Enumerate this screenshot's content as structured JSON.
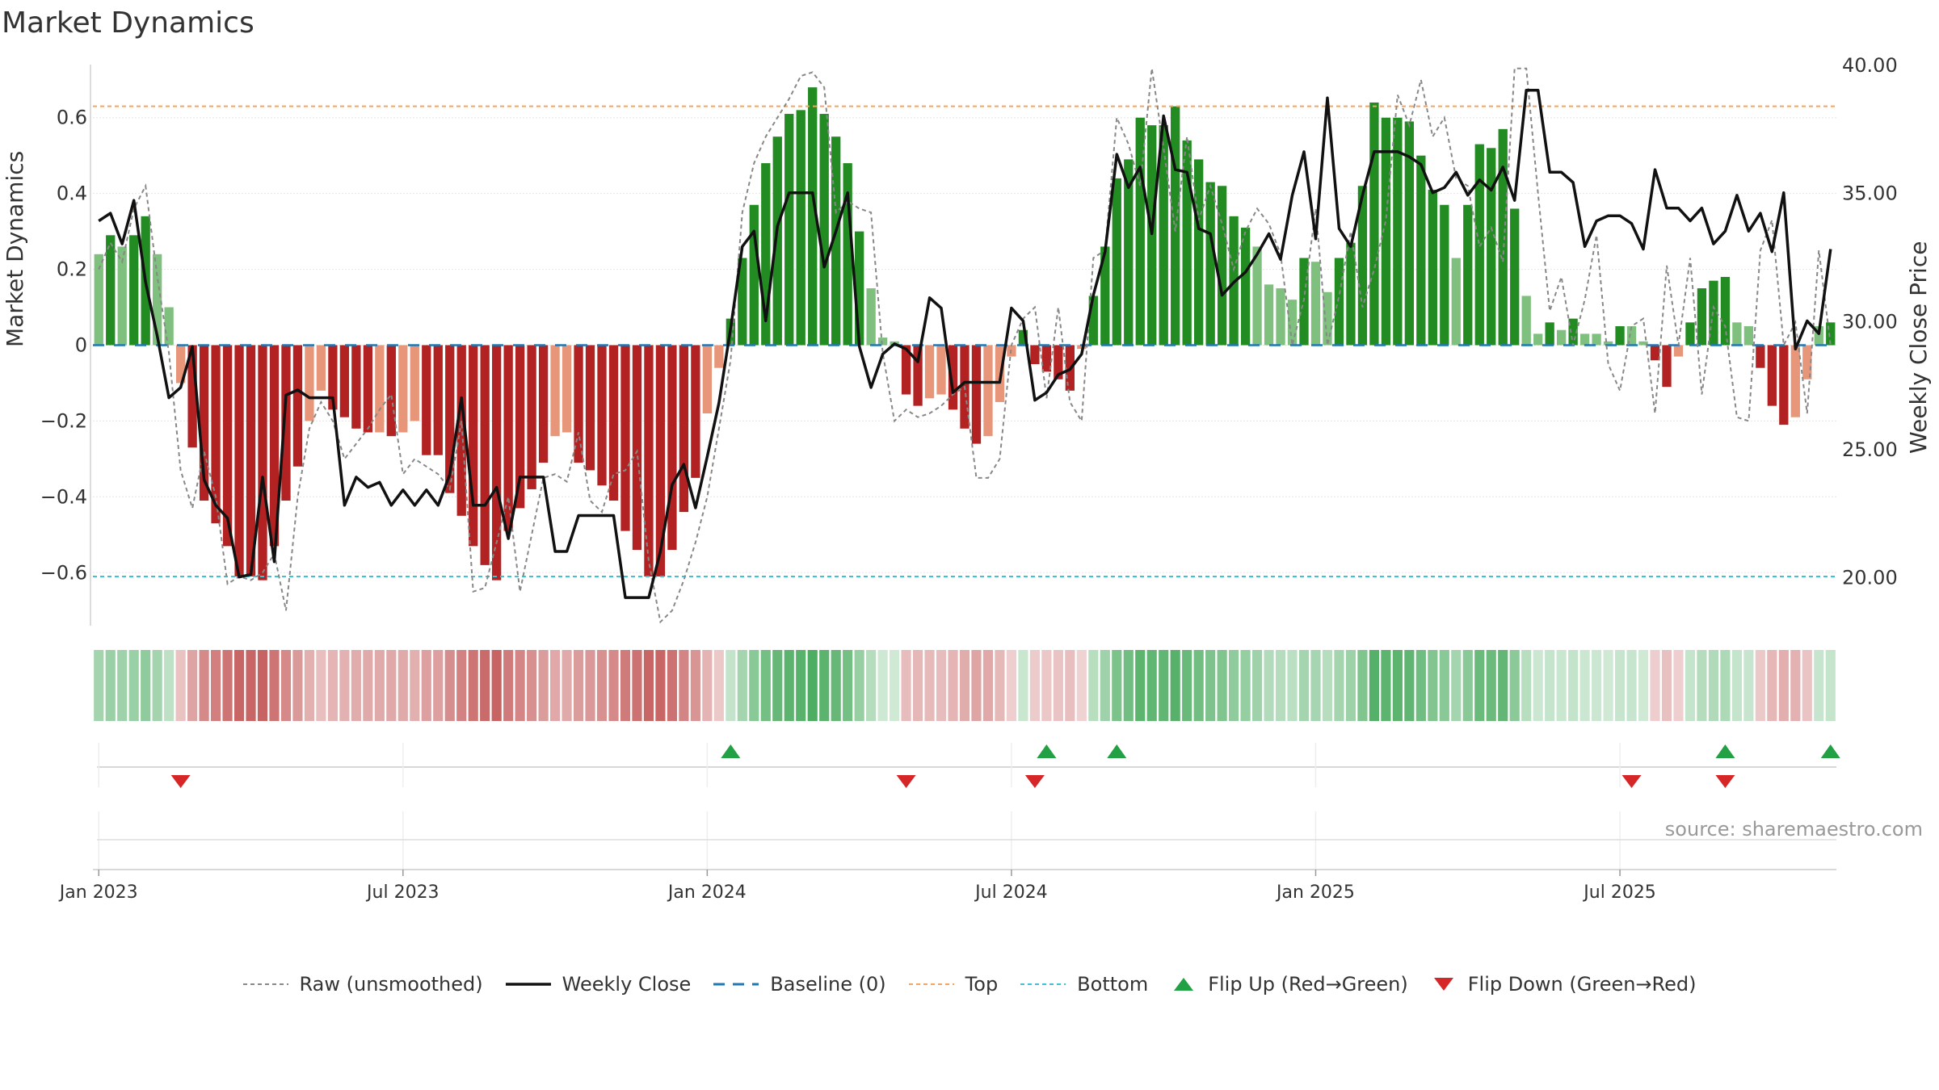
{
  "title": "Market Dynamics",
  "watermark": "source: sharemaestro.com",
  "colors": {
    "strong_green": "#228b22",
    "light_green": "#7fc07f",
    "strong_red": "#b22222",
    "light_red": "#e8967a",
    "close_line": "#111111",
    "raw_line": "#888888",
    "baseline": "#1f77b4",
    "top": "#f4a460",
    "bottom": "#40c0d0",
    "flip_up": "#22a044",
    "flip_down": "#d62728"
  },
  "legend": [
    {
      "label": "Raw (unsmoothed)",
      "kind": "raw"
    },
    {
      "label": "Weekly Close",
      "kind": "close"
    },
    {
      "label": "Baseline (0)",
      "kind": "baseline"
    },
    {
      "label": "Top",
      "kind": "top"
    },
    {
      "label": "Bottom",
      "kind": "bottom"
    },
    {
      "label": "Flip Up (Red→Green)",
      "kind": "flip_up"
    },
    {
      "label": "Flip Down (Green→Red)",
      "kind": "flip_down"
    }
  ],
  "chart_data": {
    "type": "bar",
    "title": "Market Dynamics",
    "ylabel": "Market Dynamics",
    "y2label": "Weekly Close Price",
    "ylim": [
      -0.74,
      0.74
    ],
    "y2lim": [
      18.1,
      40.0
    ],
    "yticks": [
      0.6,
      0.4,
      0.2,
      0,
      -0.2,
      -0.4,
      -0.6
    ],
    "ytick_labels": [
      "0.6",
      "0.4",
      "0.2",
      "0",
      "−0.2",
      "−0.4",
      "−0.6"
    ],
    "y2ticks": [
      40,
      35,
      30,
      25,
      20
    ],
    "y2tick_labels": [
      "40.00",
      "35.00",
      "30.00",
      "25.00",
      "20.00"
    ],
    "xtick_labels": [
      "Jan 2023",
      "Jul 2023",
      "Jan 2024",
      "Jul 2024",
      "Jan 2025",
      "Jul 2025"
    ],
    "top_level": 0.63,
    "bottom_level": -0.61,
    "baseline": 0,
    "grid": true,
    "legend_position": "bottom",
    "weeks": 142,
    "series": [
      {
        "name": "Weekly Close",
        "axis": "right",
        "values": [
          33.9,
          34.2,
          33.0,
          34.7,
          31.5,
          29.4,
          27.0,
          27.4,
          29.0,
          23.8,
          22.8,
          22.3,
          20.0,
          20.1,
          23.9,
          20.6,
          27.1,
          27.3,
          27.0,
          27.0,
          27.0,
          22.8,
          23.9,
          23.5,
          23.7,
          22.8,
          23.4,
          22.8,
          23.4,
          22.8,
          24.0,
          27.0,
          22.8,
          22.8,
          23.5,
          21.5,
          23.9,
          23.9,
          23.9,
          21.0,
          21.0,
          22.4,
          22.4,
          22.4,
          22.4,
          19.2,
          19.2,
          19.2,
          21.0,
          23.6,
          24.4,
          22.7,
          24.7,
          26.8,
          29.7,
          32.9,
          33.5,
          30.0,
          33.7,
          35.0,
          35.0,
          35.0,
          32.1,
          33.5,
          35.0,
          29.0,
          27.4,
          28.7,
          29.1,
          28.9,
          28.4,
          30.9,
          30.5,
          27.2,
          27.6,
          27.6,
          27.6,
          27.6,
          30.5,
          30.0,
          26.9,
          27.2,
          27.9,
          28.1,
          28.7,
          31.0,
          32.7,
          36.5,
          35.2,
          36.0,
          33.4,
          38.0,
          35.9,
          35.8,
          33.6,
          33.4,
          31.0,
          31.5,
          31.9,
          32.6,
          33.4,
          32.4,
          34.9,
          36.6,
          33.2,
          38.7,
          33.6,
          32.9,
          34.9,
          36.6,
          36.6,
          36.6,
          36.4,
          36.1,
          35.0,
          35.2,
          35.8,
          34.9,
          35.5,
          35.1,
          36.0,
          34.7,
          39.0,
          39.0,
          35.8,
          35.8,
          35.4,
          32.9,
          33.9,
          34.1,
          34.1,
          33.8,
          32.8,
          35.9,
          34.4,
          34.4,
          33.9,
          34.4,
          33.0,
          33.5,
          34.9,
          33.5,
          34.2,
          32.7,
          35.0,
          28.9,
          30.0,
          29.5,
          32.8,
          33.0,
          34.0,
          34.4,
          34.0
        ]
      },
      {
        "name": "Raw (unsmoothed)",
        "axis": "left",
        "values": [
          0.2,
          0.27,
          0.22,
          0.36,
          0.42,
          0.18,
          -0.02,
          -0.33,
          -0.43,
          -0.28,
          -0.4,
          -0.63,
          -0.61,
          -0.62,
          -0.6,
          -0.55,
          -0.7,
          -0.4,
          -0.22,
          -0.15,
          -0.2,
          -0.3,
          -0.26,
          -0.22,
          -0.17,
          -0.13,
          -0.34,
          -0.3,
          -0.32,
          -0.34,
          -0.38,
          -0.2,
          -0.65,
          -0.64,
          -0.52,
          -0.4,
          -0.65,
          -0.5,
          -0.35,
          -0.34,
          -0.36,
          -0.23,
          -0.41,
          -0.44,
          -0.34,
          -0.33,
          -0.28,
          -0.57,
          -0.73,
          -0.7,
          -0.62,
          -0.52,
          -0.4,
          -0.22,
          -0.04,
          0.35,
          0.48,
          0.55,
          0.6,
          0.65,
          0.71,
          0.72,
          0.68,
          0.35,
          0.38,
          0.36,
          0.35,
          -0.02,
          -0.2,
          -0.17,
          -0.19,
          -0.18,
          -0.16,
          -0.13,
          -0.11,
          -0.35,
          -0.35,
          -0.3,
          0.0,
          0.07,
          0.1,
          -0.14,
          0.1,
          -0.15,
          -0.2,
          0.23,
          0.25,
          0.6,
          0.53,
          0.42,
          0.73,
          0.52,
          0.3,
          0.55,
          0.33,
          0.42,
          0.32,
          0.2,
          0.3,
          0.36,
          0.32,
          0.24,
          0.0,
          0.12,
          0.36,
          0.0,
          0.13,
          0.3,
          0.1,
          0.2,
          0.33,
          0.66,
          0.58,
          0.7,
          0.55,
          0.6,
          0.44,
          0.42,
          0.26,
          0.31,
          0.22,
          0.73,
          0.73,
          0.4,
          0.09,
          0.18,
          0.0,
          0.12,
          0.29,
          -0.05,
          -0.12,
          0.05,
          0.07,
          -0.18,
          0.21,
          0.0,
          0.23,
          -0.13,
          0.1,
          0.05,
          -0.19,
          -0.2,
          0.25,
          0.33,
          0.0,
          0.06,
          -0.18,
          0.25,
          0.0,
          0.0,
          -0.2,
          -0.42,
          0.0,
          0.03,
          0.1,
          0.12,
          0.1
        ]
      }
    ],
    "bars": [
      0.24,
      0.29,
      0.26,
      0.29,
      0.34,
      0.24,
      0.1,
      -0.1,
      -0.27,
      -0.41,
      -0.47,
      -0.53,
      -0.61,
      -0.61,
      -0.62,
      -0.53,
      -0.41,
      -0.32,
      -0.2,
      -0.12,
      -0.17,
      -0.19,
      -0.22,
      -0.23,
      -0.23,
      -0.24,
      -0.23,
      -0.2,
      -0.29,
      -0.29,
      -0.39,
      -0.45,
      -0.53,
      -0.58,
      -0.62,
      -0.49,
      -0.43,
      -0.38,
      -0.31,
      -0.24,
      -0.23,
      -0.31,
      -0.33,
      -0.37,
      -0.41,
      -0.49,
      -0.54,
      -0.61,
      -0.61,
      -0.54,
      -0.44,
      -0.35,
      -0.18,
      -0.06,
      0.07,
      0.23,
      0.37,
      0.48,
      0.55,
      0.61,
      0.62,
      0.68,
      0.61,
      0.55,
      0.48,
      0.3,
      0.15,
      0.02,
      0.01,
      -0.13,
      -0.16,
      -0.14,
      -0.13,
      -0.17,
      -0.22,
      -0.26,
      -0.24,
      -0.15,
      -0.03,
      0.04,
      -0.05,
      -0.07,
      -0.09,
      -0.12,
      -0.01,
      0.13,
      0.26,
      0.44,
      0.49,
      0.6,
      0.58,
      0.58,
      0.63,
      0.54,
      0.49,
      0.43,
      0.42,
      0.34,
      0.31,
      0.26,
      0.16,
      0.15,
      0.12,
      0.23,
      0.22,
      0.14,
      0.23,
      0.27,
      0.42,
      0.64,
      0.6,
      0.6,
      0.59,
      0.5,
      0.41,
      0.37,
      0.23,
      0.37,
      0.53,
      0.52,
      0.57,
      0.36,
      0.13,
      0.03,
      0.06,
      0.04,
      0.07,
      0.03,
      0.03,
      0.01,
      0.05,
      0.05,
      0.01,
      -0.04,
      -0.11,
      -0.03,
      0.06,
      0.15,
      0.17,
      0.18,
      0.06,
      0.05,
      -0.06,
      -0.16,
      -0.21,
      -0.19,
      -0.09,
      0.05,
      0.06
    ],
    "flip_up_weeks": [
      54,
      81,
      87,
      139,
      149
    ],
    "flip_down_weeks": [
      7,
      69,
      80,
      131,
      139
    ]
  }
}
